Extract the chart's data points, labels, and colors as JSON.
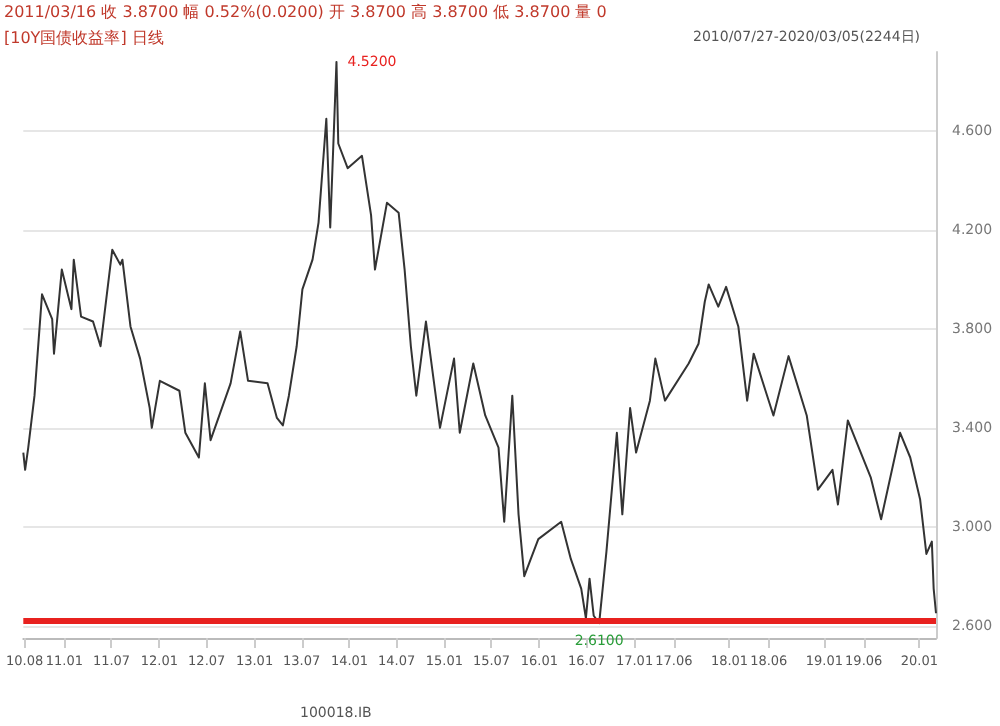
{
  "chart_data": {
    "type": "line",
    "title": "[10Y国债收益率] 日线",
    "annotations": [
      "2011/03/16 收 3.8700 幅 0.52%(0.0200) 开 3.8700 高 3.8700 低 3.8700 量 0",
      "2010/07/27-2020/03/05(2244日)",
      "100018.IB",
      "4.5200",
      "2.6100"
    ],
    "x": [
      "2010-07-27",
      "2010-08-03",
      "2010-08-15",
      "2010-09-08",
      "2010-10-07",
      "2010-11-15",
      "2010-11-22",
      "2010-12-22",
      "2011-01-28",
      "2011-02-06",
      "2011-03-06",
      "2011-04-21",
      "2011-05-20",
      "2011-07-04",
      "2011-08-04",
      "2011-08-12",
      "2011-09-12",
      "2011-10-19",
      "2011-11-25",
      "2011-12-03",
      "2012-01-03",
      "2012-03-18",
      "2012-04-10",
      "2012-06-01",
      "2012-06-24",
      "2012-07-16",
      "2012-10-01",
      "2012-11-07",
      "2012-12-07",
      "2013-02-20",
      "2013-03-28",
      "2013-04-20",
      "2013-05-13",
      "2013-06-12",
      "2013-07-04",
      "2013-08-12",
      "2013-09-04",
      "2013-10-04",
      "2013-10-19",
      "2013-11-12",
      "2013-11-19",
      "2013-12-25",
      "2014-02-18",
      "2014-03-25",
      "2014-04-09",
      "2014-05-25",
      "2014-07-09",
      "2014-08-01",
      "2014-08-25",
      "2014-09-15",
      "2014-10-22",
      "2014-12-15",
      "2015-02-07",
      "2015-03-01",
      "2015-04-22",
      "2015-06-07",
      "2015-07-28",
      "2015-08-19",
      "2015-09-19",
      "2015-10-13",
      "2015-11-04",
      "2015-12-28",
      "2016-03-25",
      "2016-05-01",
      "2016-06-10",
      "2016-06-28",
      "2016-07-12",
      "2016-07-28",
      "2016-08-18",
      "2016-09-15",
      "2016-10-25",
      "2016-11-15",
      "2016-12-15",
      "2017-01-07",
      "2017-03-01",
      "2017-03-22",
      "2017-04-28",
      "2017-07-28",
      "2017-09-04",
      "2017-09-28",
      "2017-10-13",
      "2017-11-19",
      "2017-12-19",
      "2018-02-04",
      "2018-03-10",
      "2018-04-04",
      "2018-06-19",
      "2018-08-16",
      "2018-10-25",
      "2018-12-07",
      "2019-02-01",
      "2019-02-22",
      "2019-04-01",
      "2019-06-28",
      "2019-08-07",
      "2019-10-19",
      "2019-11-27",
      "2020-01-04",
      "2020-01-28",
      "2020-02-18",
      "2020-02-25",
      "2020-03-05"
    ],
    "series": [
      {
        "color": "#333333",
        "values": [
          3.3,
          3.23,
          3.32,
          3.53,
          3.94,
          3.84,
          3.7,
          4.04,
          3.88,
          4.08,
          3.85,
          3.83,
          3.73,
          4.12,
          4.06,
          4.08,
          3.81,
          3.68,
          3.48,
          3.4,
          3.59,
          3.55,
          3.38,
          3.28,
          3.58,
          3.35,
          3.58,
          3.79,
          3.59,
          3.58,
          3.44,
          3.41,
          3.53,
          3.73,
          3.96,
          4.08,
          4.23,
          4.65,
          4.21,
          4.88,
          4.55,
          4.45,
          4.5,
          4.26,
          4.04,
          4.31,
          4.27,
          4.04,
          3.73,
          3.53,
          3.83,
          3.4,
          3.68,
          3.38,
          3.66,
          3.45,
          3.32,
          3.02,
          3.53,
          3.05,
          2.8,
          2.95,
          3.02,
          2.87,
          2.75,
          2.63,
          2.79,
          2.64,
          2.61,
          2.9,
          3.38,
          3.05,
          3.48,
          3.3,
          3.51,
          3.68,
          3.51,
          3.66,
          3.74,
          3.91,
          3.98,
          3.89,
          3.97,
          3.81,
          3.51,
          3.7,
          3.45,
          3.69,
          3.45,
          3.15,
          3.23,
          3.09,
          3.43,
          3.2,
          3.03,
          3.38,
          3.28,
          3.11,
          2.89,
          2.94,
          2.75,
          2.65
        ]
      }
    ],
    "xlim": [
      "2010-07-27",
      "2020-03-05"
    ],
    "xticks": [
      {
        "value": "2010-08-01",
        "label": "10.08"
      },
      {
        "value": "2011-01-01",
        "label": "11.01"
      },
      {
        "value": "2011-07-01",
        "label": "11.07"
      },
      {
        "value": "2012-01-01",
        "label": "12.01"
      },
      {
        "value": "2012-07-01",
        "label": "12.07"
      },
      {
        "value": "2013-01-01",
        "label": "13.01"
      },
      {
        "value": "2013-07-01",
        "label": "13.07"
      },
      {
        "value": "2014-01-01",
        "label": "14.01"
      },
      {
        "value": "2014-07-01",
        "label": "14.07"
      },
      {
        "value": "2015-01-01",
        "label": "15.01"
      },
      {
        "value": "2015-07-01",
        "label": "15.07"
      },
      {
        "value": "2016-01-01",
        "label": "16.01"
      },
      {
        "value": "2016-07-01",
        "label": "16.07"
      },
      {
        "value": "2017-01-01",
        "label": "17.01"
      },
      {
        "value": "2017-06-01",
        "label": "17.06"
      },
      {
        "value": "2018-01-01",
        "label": "18.01"
      },
      {
        "value": "2018-06-01",
        "label": "18.06"
      },
      {
        "value": "2019-01-01",
        "label": "19.01"
      },
      {
        "value": "2019-06-01",
        "label": "19.06"
      },
      {
        "value": "2020-01-01",
        "label": "20.01"
      }
    ],
    "ylim": [
      2.55,
      4.92
    ],
    "yticks": [
      {
        "value": 2.6,
        "label": "2.600"
      },
      {
        "value": 3.0,
        "label": "3.000"
      },
      {
        "value": 3.4,
        "label": "3.400"
      },
      {
        "value": 3.8,
        "label": "3.800"
      },
      {
        "value": 4.2,
        "label": "4.200"
      },
      {
        "value": 4.6,
        "label": "4.600"
      }
    ],
    "ref_lines": [
      {
        "axis": "y",
        "value": 2.62,
        "color": "#e8211f"
      }
    ],
    "grid": "y",
    "marker": "none",
    "line_style": "solid"
  }
}
